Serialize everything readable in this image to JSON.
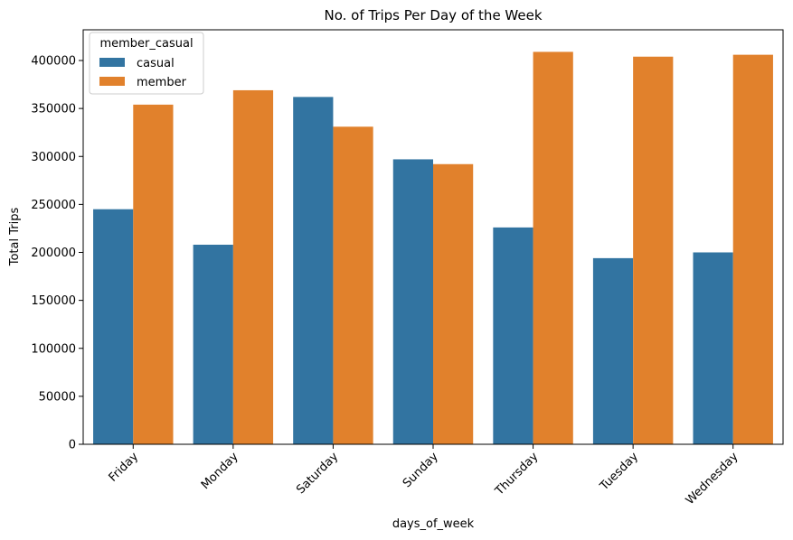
{
  "chart_data": {
    "type": "bar",
    "title": "No. of Trips Per Day of the Week",
    "xlabel": "days_of_week",
    "ylabel": "Total Trips",
    "categories": [
      "Friday",
      "Monday",
      "Saturday",
      "Sunday",
      "Thursday",
      "Tuesday",
      "Wednesday"
    ],
    "series": [
      {
        "name": "casual",
        "color": "#3274a1",
        "values": [
          245000,
          208000,
          362000,
          297000,
          226000,
          194000,
          200000
        ]
      },
      {
        "name": "member",
        "color": "#e1812c",
        "values": [
          354000,
          369000,
          331000,
          292000,
          409000,
          404000,
          406000
        ]
      }
    ],
    "ylim": [
      0,
      432000
    ],
    "yticks": [
      0,
      50000,
      100000,
      150000,
      200000,
      250000,
      300000,
      350000,
      400000
    ],
    "legend": {
      "title": "member_casual",
      "placement": "top-left"
    },
    "grid": false
  }
}
